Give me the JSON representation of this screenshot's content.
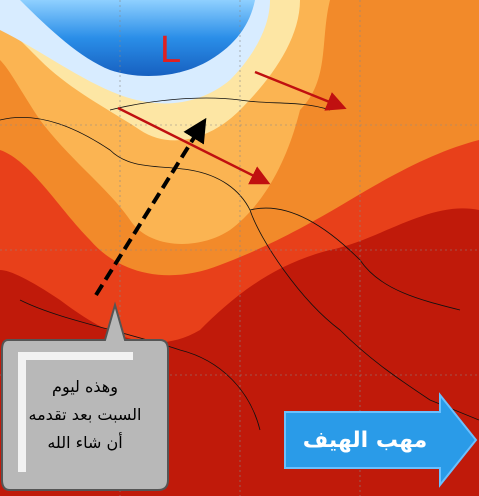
{
  "map": {
    "low_label": "L",
    "callout": {
      "lines": [
        "وهذه ليوم",
        "السبت بعد تقدمه",
        "أن شاء الله"
      ]
    },
    "arrow_label": "مهب الهيف"
  }
}
